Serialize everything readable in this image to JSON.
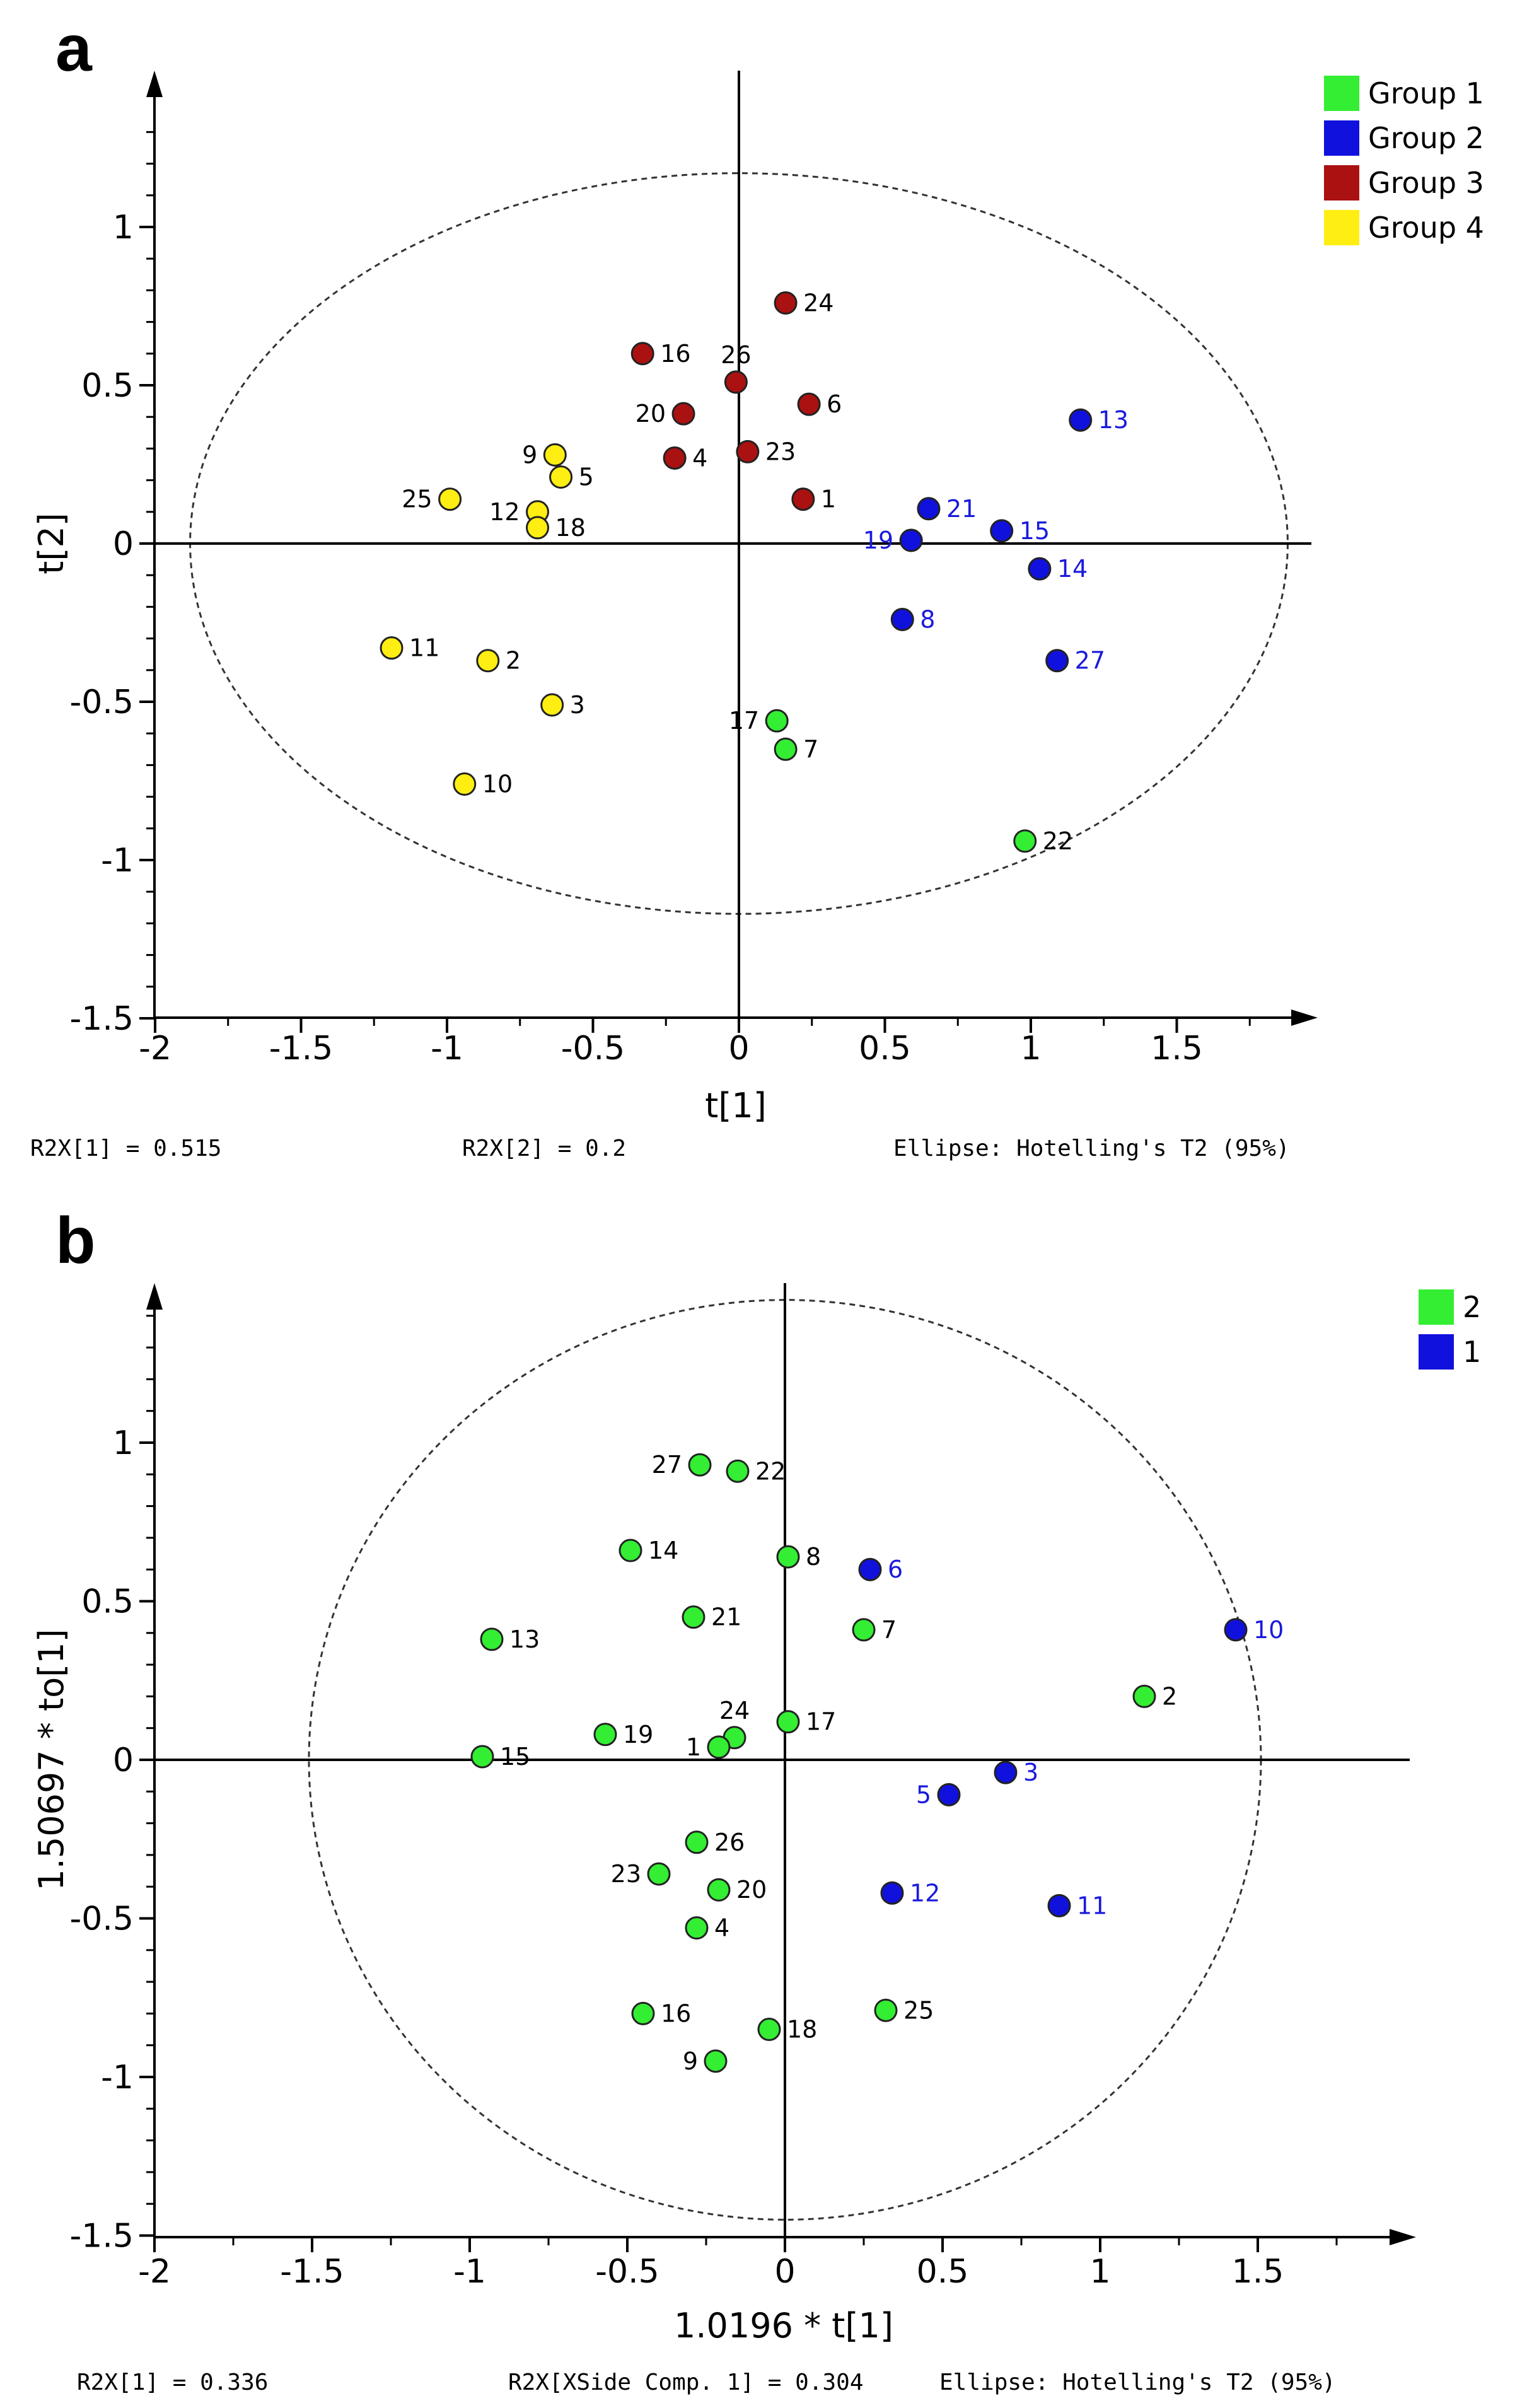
{
  "chart_data": [
    {
      "panel": "a",
      "type": "scatter",
      "xlabel": "t[1]",
      "ylabel": "t[2]",
      "xlim": [
        -2,
        2.0
      ],
      "ylim": [
        -1.5,
        1.5
      ],
      "xticks": [
        -2,
        -1.5,
        -1,
        -0.5,
        0,
        0.5,
        1,
        1.5
      ],
      "xtick_labels": [
        "-2",
        "-1.5",
        "-1",
        "-0.5",
        "0",
        "0.5",
        "1",
        "1.5"
      ],
      "yticks": [
        -1.5,
        -1,
        -0.5,
        0,
        0.5,
        1
      ],
      "ytick_labels": [
        "-1.5",
        "-1",
        "-0.5",
        "0",
        "0.5",
        "1"
      ],
      "ellipse": {
        "rx": 1.88,
        "ry": 1.17
      },
      "legend": {
        "placement": "top-right"
      },
      "series": [
        {
          "name": "Group 1",
          "color": "#33ee33",
          "label_color": "#000000",
          "points": [
            {
              "id": "17",
              "x": 0.13,
              "y": -0.56,
              "label_side": "left"
            },
            {
              "id": "7",
              "x": 0.16,
              "y": -0.65,
              "label_side": "right"
            },
            {
              "id": "22",
              "x": 0.98,
              "y": -0.94,
              "label_side": "right"
            }
          ]
        },
        {
          "name": "Group 2",
          "color": "#1111dd",
          "label_color": "#1a1add",
          "points": [
            {
              "id": "13",
              "x": 1.17,
              "y": 0.39,
              "label_side": "right"
            },
            {
              "id": "21",
              "x": 0.65,
              "y": 0.11,
              "label_side": "right"
            },
            {
              "id": "15",
              "x": 0.9,
              "y": 0.04,
              "label_side": "right"
            },
            {
              "id": "19",
              "x": 0.59,
              "y": 0.01,
              "label_side": "left"
            },
            {
              "id": "14",
              "x": 1.03,
              "y": -0.08,
              "label_side": "right"
            },
            {
              "id": "8",
              "x": 0.56,
              "y": -0.24,
              "label_side": "right"
            },
            {
              "id": "27",
              "x": 1.09,
              "y": -0.37,
              "label_side": "right"
            }
          ]
        },
        {
          "name": "Group 3",
          "color": "#aa1111",
          "label_color": "#000000",
          "points": [
            {
              "id": "24",
              "x": 0.16,
              "y": 0.76,
              "label_side": "right"
            },
            {
              "id": "16",
              "x": -0.33,
              "y": 0.6,
              "label_side": "right"
            },
            {
              "id": "26",
              "x": -0.01,
              "y": 0.51,
              "label_side": "above"
            },
            {
              "id": "6",
              "x": 0.24,
              "y": 0.44,
              "label_side": "right"
            },
            {
              "id": "20",
              "x": -0.19,
              "y": 0.41,
              "label_side": "left"
            },
            {
              "id": "23",
              "x": 0.03,
              "y": 0.29,
              "label_side": "right"
            },
            {
              "id": "4",
              "x": -0.22,
              "y": 0.27,
              "label_side": "right"
            },
            {
              "id": "1",
              "x": 0.22,
              "y": 0.14,
              "label_side": "right"
            }
          ]
        },
        {
          "name": "Group 4",
          "color": "#ffee11",
          "label_color": "#000000",
          "points": [
            {
              "id": "9",
              "x": -0.63,
              "y": 0.28,
              "label_side": "left"
            },
            {
              "id": "5",
              "x": -0.61,
              "y": 0.21,
              "label_side": "right"
            },
            {
              "id": "25",
              "x": -0.99,
              "y": 0.14,
              "label_side": "left"
            },
            {
              "id": "12",
              "x": -0.69,
              "y": 0.1,
              "label_side": "left"
            },
            {
              "id": "18",
              "x": -0.69,
              "y": 0.05,
              "label_side": "right"
            },
            {
              "id": "11",
              "x": -1.19,
              "y": -0.33,
              "label_side": "right"
            },
            {
              "id": "2",
              "x": -0.86,
              "y": -0.37,
              "label_side": "right"
            },
            {
              "id": "3",
              "x": -0.64,
              "y": -0.51,
              "label_side": "right"
            },
            {
              "id": "10",
              "x": -0.94,
              "y": -0.76,
              "label_side": "right"
            }
          ]
        }
      ],
      "footer": {
        "left": "R2X[1] = 0.515",
        "middle": "R2X[2] = 0.2",
        "right": "Ellipse: Hotelling's T2 (95%)"
      }
    },
    {
      "panel": "b",
      "type": "scatter",
      "xlabel": "1.0196 * t[1]",
      "ylabel": "1.50697 * to[1]",
      "xlim": [
        -2,
        2.0
      ],
      "ylim": [
        -1.5,
        1.5
      ],
      "xticks": [
        -2,
        -1.5,
        -1,
        -0.5,
        0,
        0.5,
        1,
        1.5
      ],
      "xtick_labels": [
        "-2",
        "-1.5",
        "-1",
        "-0.5",
        "0",
        "0.5",
        "1",
        "1.5"
      ],
      "yticks": [
        -1.5,
        -1,
        -0.5,
        0,
        0.5,
        1
      ],
      "ytick_labels": [
        "-1.5",
        "-1",
        "-0.5",
        "0",
        "0.5",
        "1"
      ],
      "ellipse": {
        "rx": 1.51,
        "ry": 1.45
      },
      "legend": {
        "placement": "top-right"
      },
      "series": [
        {
          "name": "2",
          "color": "#33ee33",
          "label_color": "#000000",
          "points": [
            {
              "id": "27",
              "x": -0.27,
              "y": 0.93,
              "label_side": "left"
            },
            {
              "id": "22",
              "x": -0.15,
              "y": 0.91,
              "label_side": "right"
            },
            {
              "id": "14",
              "x": -0.49,
              "y": 0.66,
              "label_side": "right"
            },
            {
              "id": "8",
              "x": 0.01,
              "y": 0.64,
              "label_side": "right"
            },
            {
              "id": "21",
              "x": -0.29,
              "y": 0.45,
              "label_side": "right"
            },
            {
              "id": "7",
              "x": 0.25,
              "y": 0.41,
              "label_side": "right"
            },
            {
              "id": "13",
              "x": -0.93,
              "y": 0.38,
              "label_side": "right"
            },
            {
              "id": "2",
              "x": 1.14,
              "y": 0.2,
              "label_side": "right"
            },
            {
              "id": "17",
              "x": 0.01,
              "y": 0.12,
              "label_side": "right"
            },
            {
              "id": "19",
              "x": -0.57,
              "y": 0.08,
              "label_side": "right"
            },
            {
              "id": "24",
              "x": -0.16,
              "y": 0.07,
              "label_side": "above"
            },
            {
              "id": "1",
              "x": -0.21,
              "y": 0.04,
              "label_side": "left"
            },
            {
              "id": "15",
              "x": -0.96,
              "y": 0.01,
              "label_side": "right"
            },
            {
              "id": "26",
              "x": -0.28,
              "y": -0.26,
              "label_side": "right"
            },
            {
              "id": "23",
              "x": -0.4,
              "y": -0.36,
              "label_side": "left"
            },
            {
              "id": "20",
              "x": -0.21,
              "y": -0.41,
              "label_side": "right"
            },
            {
              "id": "4",
              "x": -0.28,
              "y": -0.53,
              "label_side": "right"
            },
            {
              "id": "25",
              "x": 0.32,
              "y": -0.79,
              "label_side": "right"
            },
            {
              "id": "16",
              "x": -0.45,
              "y": -0.8,
              "label_side": "right"
            },
            {
              "id": "18",
              "x": -0.05,
              "y": -0.85,
              "label_side": "right"
            },
            {
              "id": "9",
              "x": -0.22,
              "y": -0.95,
              "label_side": "left"
            }
          ]
        },
        {
          "name": "1",
          "color": "#1111dd",
          "label_color": "#1a1add",
          "points": [
            {
              "id": "6",
              "x": 0.27,
              "y": 0.6,
              "label_side": "right"
            },
            {
              "id": "10",
              "x": 1.43,
              "y": 0.41,
              "label_side": "right"
            },
            {
              "id": "3",
              "x": 0.7,
              "y": -0.04,
              "label_side": "right"
            },
            {
              "id": "5",
              "x": 0.52,
              "y": -0.11,
              "label_side": "left"
            },
            {
              "id": "12",
              "x": 0.34,
              "y": -0.42,
              "label_side": "right"
            },
            {
              "id": "11",
              "x": 0.87,
              "y": -0.46,
              "label_side": "right"
            }
          ]
        }
      ],
      "footer": {
        "left": "R2X[1] = 0.336",
        "middle": "R2X[XSide Comp. 1] = 0.304",
        "right": "Ellipse: Hotelling's T2 (95%)"
      }
    }
  ]
}
